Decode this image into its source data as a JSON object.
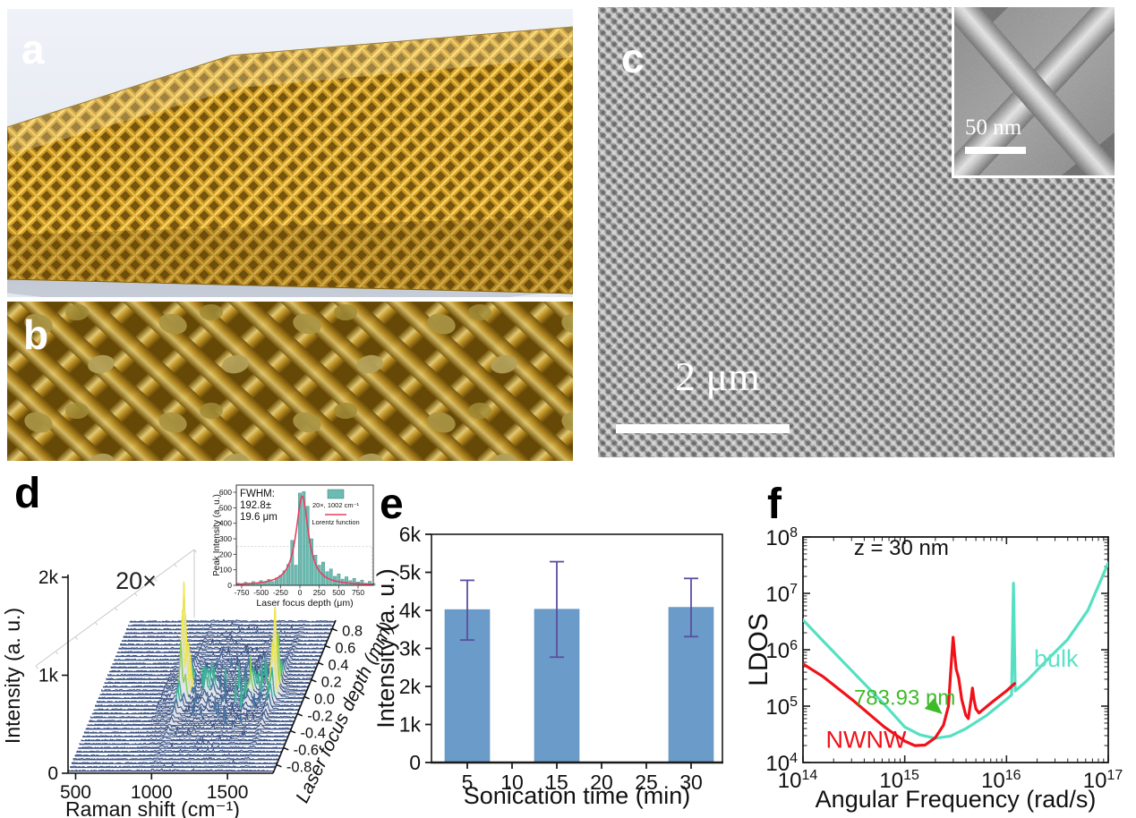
{
  "figure": {
    "panels": {
      "a": {
        "label": "a"
      },
      "b": {
        "label": "b"
      },
      "c": {
        "label": "c",
        "scale_bar_text": "2 μm",
        "inset_scale_bar_text": "50 nm"
      },
      "d": {
        "label": "d"
      },
      "e": {
        "label": "e"
      },
      "f": {
        "label": "f"
      }
    }
  },
  "chart_data": [
    {
      "id": "raman_waterfall",
      "type": "waterfall_3d",
      "annotation": "20×",
      "xlabel": "Raman shift (cm⁻¹)",
      "ylabel": "Intensity (a. u.)",
      "zlabel": "Laser focus depth (mm)",
      "x_ticks": [
        500,
        1000,
        1500
      ],
      "x_range": [
        450,
        1800
      ],
      "y_tick_labels": [
        "0",
        "1k",
        "2k"
      ],
      "y_range": [
        0,
        2000
      ],
      "z_tick_labels": [
        "0.8",
        "0.6",
        "0.4",
        "0.2",
        "0.0",
        "-0.2",
        "-0.4",
        "-0.6",
        "-0.8"
      ],
      "z_range_mm": [
        -0.9,
        0.9
      ],
      "n_spectra": 40,
      "raman_peaks": [
        {
          "center": 1002,
          "width": 9,
          "rel_height": 1.0
        },
        {
          "center": 1032,
          "width": 9,
          "rel_height": 0.42
        },
        {
          "center": 1155,
          "width": 12,
          "rel_height": 0.2
        },
        {
          "center": 1205,
          "width": 12,
          "rel_height": 0.14
        },
        {
          "center": 1450,
          "width": 16,
          "rel_height": 0.24
        },
        {
          "center": 1583,
          "width": 9,
          "rel_height": 0.3
        },
        {
          "center": 1602,
          "width": 9,
          "rel_height": 0.85
        }
      ],
      "depth_envelope": {
        "shape": "lorentzian",
        "center_mm": 0.02,
        "fwhm_mm": 0.193,
        "peak_intensity": 950
      },
      "line_color": "#3a5183",
      "fill_color": "#e0e3ea",
      "peak_colors": {
        "low": "#46749e",
        "mid": "#3bb296",
        "high": "#8ed053",
        "top": "#f0e94d"
      },
      "inset": {
        "type": "bar",
        "annotation_lines": [
          "FWHM:",
          "192.8±",
          "19.6 μm"
        ],
        "xlabel": "Laser focus depth (μm)",
        "ylabel": "Peak Intensity (a. u.)",
        "x_ticks": [
          -750,
          -500,
          -250,
          0,
          250,
          500,
          750
        ],
        "y_ticks": [
          0,
          100,
          200,
          300,
          400,
          500,
          600
        ],
        "legend": [
          {
            "label": "20×, 1002 cm⁻¹",
            "type": "bar",
            "color": "#6cbcb2"
          },
          {
            "label": "Lorentz function",
            "type": "line",
            "color": "#e8405f"
          }
        ],
        "bin_centers": [
          -800,
          -750,
          -700,
          -650,
          -600,
          -550,
          -500,
          -450,
          -400,
          -350,
          -300,
          -250,
          -200,
          -150,
          -100,
          -50,
          0,
          50,
          100,
          150,
          200,
          250,
          300,
          350,
          400,
          450,
          500,
          550,
          600,
          650,
          700,
          750,
          800,
          850,
          900,
          950
        ],
        "values": [
          14,
          8,
          20,
          10,
          24,
          14,
          30,
          18,
          38,
          24,
          48,
          64,
          95,
          135,
          290,
          130,
          595,
          605,
          510,
          300,
          195,
          130,
          150,
          88,
          105,
          58,
          74,
          40,
          55,
          30,
          45,
          22,
          34,
          14,
          26,
          12
        ],
        "lorentz_fit": {
          "center": 30,
          "fwhm": 192.8,
          "peak": 575
        },
        "bar_color": "#6cbcb2",
        "line_color": "#e8405f"
      }
    },
    {
      "id": "sonication_bars",
      "type": "bar",
      "xlabel": "Sonication time (min)",
      "ylabel": "Intensity (a. u.)",
      "x_ticks": [
        5,
        10,
        15,
        20,
        25,
        30
      ],
      "xlim": [
        1,
        33.5
      ],
      "y_tick_labels": [
        "0",
        "1k",
        "2k",
        "3k",
        "4k",
        "5k",
        "6k"
      ],
      "ylim": [
        0,
        6000
      ],
      "categories": [
        5,
        15,
        30
      ],
      "values": [
        4020,
        4030,
        4080
      ],
      "error_plus": [
        770,
        1250,
        760
      ],
      "error_minus": [
        800,
        1260,
        770
      ],
      "bar_width_min": 5,
      "bar_color": "#6b9bc8",
      "error_color": "#5a4fa0"
    },
    {
      "id": "ldos_loglog",
      "type": "line",
      "xlabel": "Angular Frequency (rad/s)",
      "ylabel": "LDOS",
      "xlim_log10": [
        14,
        17
      ],
      "ylim_log10": [
        4,
        8
      ],
      "x_tick_exponents": [
        14,
        15,
        16,
        17
      ],
      "y_tick_exponents": [
        4,
        5,
        6,
        7,
        8
      ],
      "series": [
        {
          "name": "bulk",
          "color": "#55e0c2",
          "points_log10": [
            [
              14,
              6.53
            ],
            [
              14.2,
              6.15
            ],
            [
              14.5,
              5.59
            ],
            [
              14.8,
              5.03
            ],
            [
              15.0,
              4.63
            ],
            [
              15.15,
              4.49
            ],
            [
              15.3,
              4.43
            ],
            [
              15.45,
              4.47
            ],
            [
              15.6,
              4.6
            ],
            [
              15.8,
              4.83
            ],
            [
              16.0,
              5.12
            ],
            [
              16.05,
              5.2
            ],
            [
              16.068,
              7.18
            ],
            [
              16.086,
              5.27
            ],
            [
              16.2,
              5.45
            ],
            [
              16.4,
              5.82
            ],
            [
              16.6,
              6.18
            ],
            [
              16.8,
              6.7
            ],
            [
              17.0,
              7.54
            ]
          ]
        },
        {
          "name": "NWNW",
          "color": "#f01119",
          "points_log10": [
            [
              14,
              5.75
            ],
            [
              14.2,
              5.52
            ],
            [
              14.5,
              5.09
            ],
            [
              14.8,
              4.63
            ],
            [
              15.0,
              4.38
            ],
            [
              15.1,
              4.3
            ],
            [
              15.2,
              4.31
            ],
            [
              15.3,
              4.44
            ],
            [
              15.38,
              4.66
            ],
            [
              15.43,
              5.0
            ],
            [
              15.455,
              5.7
            ],
            [
              15.475,
              6.22
            ],
            [
              15.49,
              5.92
            ],
            [
              15.505,
              5.66
            ],
            [
              15.53,
              5.5
            ],
            [
              15.56,
              5.12
            ],
            [
              15.6,
              4.84
            ],
            [
              15.625,
              4.78
            ],
            [
              15.65,
              5.1
            ],
            [
              15.665,
              5.32
            ],
            [
              15.68,
              5.12
            ],
            [
              15.7,
              4.95
            ],
            [
              15.73,
              4.88
            ],
            [
              15.77,
              4.94
            ],
            [
              15.83,
              5.03
            ],
            [
              15.9,
              5.13
            ],
            [
              16.0,
              5.27
            ],
            [
              16.08,
              5.4
            ]
          ]
        }
      ],
      "annotations": [
        {
          "text": "z = 30 nm",
          "color": "#111111",
          "x_log10": 14.5,
          "y_log10": 7.68,
          "anchor": "start",
          "size": 24
        },
        {
          "text": "bulk",
          "color": "#5ce2c6",
          "x_log10": 16.27,
          "y_log10": 5.7,
          "anchor": "start",
          "size": 27
        },
        {
          "text": "NWNW",
          "color": "#f01119",
          "x_log10": 14.62,
          "y_log10": 4.26,
          "anchor": "middle",
          "size": 27
        },
        {
          "text": "783.93 nm",
          "color": "#3fbb2a",
          "x_log10": 15.0,
          "y_log10": 5.02,
          "anchor": "middle",
          "size": 24
        }
      ],
      "marker": {
        "shape": "triangle",
        "color": "#3fbb2a",
        "x_log10": 15.37,
        "y_log10": 4.86
      }
    }
  ]
}
